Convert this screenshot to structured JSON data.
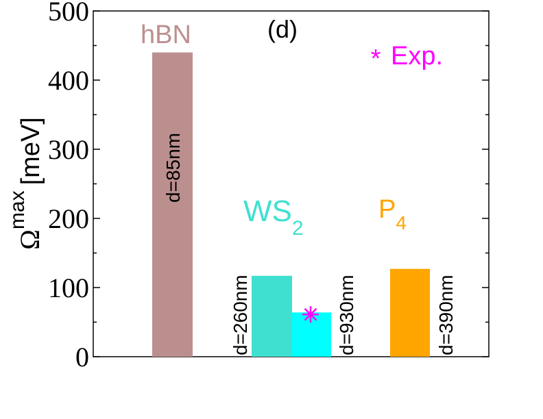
{
  "chart_data": {
    "type": "bar",
    "panel_label": "(d)",
    "ylabel": {
      "symbol": "Ω",
      "superscript": "max",
      "unit": "[meV]"
    },
    "ylim": [
      0,
      500
    ],
    "yticks": [
      "0",
      "100",
      "200",
      "300",
      "400",
      "500"
    ],
    "legend": {
      "marker": "*",
      "label": "Exp.",
      "color": "#ff00ff",
      "position": "top-right"
    },
    "groups": [
      {
        "name": "hBN",
        "subscript": "",
        "color": "#bc8f8f"
      },
      {
        "name": "WS",
        "subscript": "2",
        "color": "#40e0d0"
      },
      {
        "name": "P",
        "subscript": "4",
        "color": "#ffa500"
      }
    ],
    "bars": [
      {
        "group": "hBN",
        "value": 440,
        "label": "d=85nm",
        "color": "#bc8f8f"
      },
      {
        "group": "WS2",
        "value": 117,
        "label": "d=260nm",
        "color": "#40e0d0"
      },
      {
        "group": "WS2",
        "value": 64,
        "label": "d=930nm",
        "color": "#00ffff"
      },
      {
        "group": "P4",
        "value": 127,
        "label": "d=390nm",
        "color": "#ffa500"
      }
    ],
    "experimental_points": [
      {
        "group": "WS2",
        "value": 70,
        "color": "#ff00ff"
      }
    ]
  }
}
